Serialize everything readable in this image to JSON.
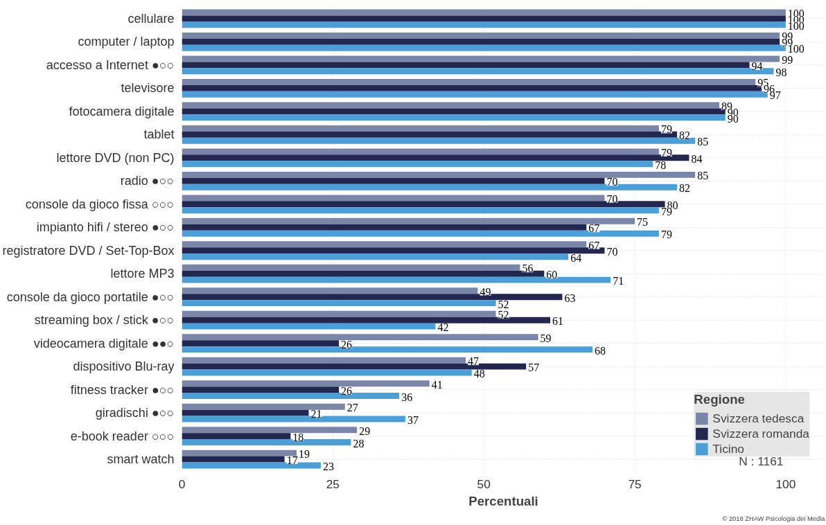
{
  "chart_data": {
    "type": "bar",
    "orientation": "horizontal",
    "xlabel": "Percentuali",
    "legend_title": "Regione",
    "legend": "bottom right",
    "grid": true,
    "data_labels": true,
    "categories": [
      "cellulare",
      "computer / laptop",
      "accesso a Internet ●○○",
      "televisore",
      "fotocamera digitale",
      "tablet",
      "lettore DVD (non PC)",
      "radio ●○○",
      "console da gioco fissa ○○○",
      "impianto hifi / stereo ●○○",
      "registratore DVD / Set-Top-Box",
      "lettore MP3",
      "console da gioco portatile ●○○",
      "streaming box / stick ●○○",
      "videocamera digitale ●●○",
      "dispositivo Blu-ray",
      "fitness tracker ●○○",
      "giradischi ●○○",
      "e-book reader ○○○",
      "smart watch"
    ],
    "xlim": [
      0,
      106.5
    ],
    "xticks": [
      0,
      25,
      50,
      75,
      100
    ],
    "series": [
      {
        "name": "Svizzera tedesca",
        "color": "#7a86a8",
        "values": [
          100,
          99,
          99,
          95,
          89,
          79,
          79,
          85,
          70,
          75,
          67,
          56,
          49,
          52,
          59,
          47,
          41,
          27,
          29,
          19
        ]
      },
      {
        "name": "Svizzera romanda",
        "color": "#23264f",
        "values": [
          100,
          99,
          94,
          96,
          90,
          82,
          84,
          70,
          80,
          67,
          70,
          60,
          63,
          61,
          26,
          57,
          26,
          21,
          18,
          17
        ]
      },
      {
        "name": "Ticino",
        "color": "#4a9fd8",
        "values": [
          100,
          100,
          98,
          97,
          90,
          85,
          78,
          82,
          79,
          79,
          64,
          71,
          52,
          42,
          68,
          48,
          36,
          37,
          28,
          23
        ]
      }
    ],
    "annotations": [
      "N : 1161",
      "© 2018 ZHAW Psicologia dei Media"
    ]
  }
}
